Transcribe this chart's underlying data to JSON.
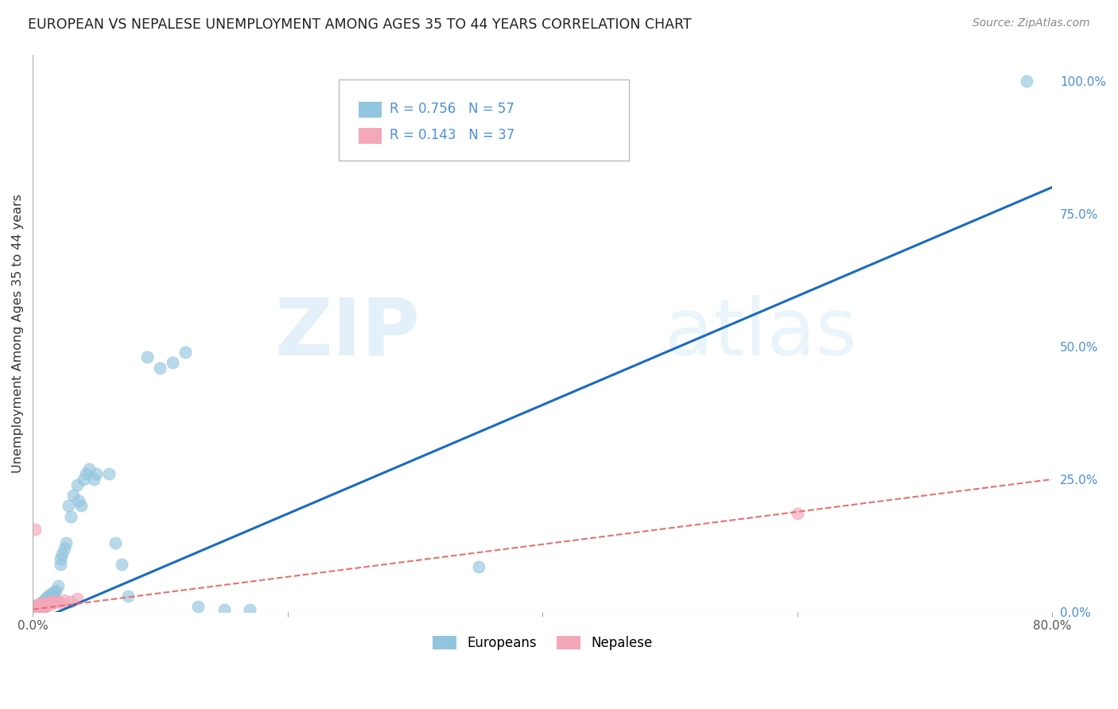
{
  "title": "EUROPEAN VS NEPALESE UNEMPLOYMENT AMONG AGES 35 TO 44 YEARS CORRELATION CHART",
  "source": "Source: ZipAtlas.com",
  "ylabel": "Unemployment Among Ages 35 to 44 years",
  "xlim": [
    0.0,
    0.8
  ],
  "ylim": [
    0.0,
    1.05
  ],
  "yticks": [
    0.0,
    0.25,
    0.5,
    0.75,
    1.0
  ],
  "yticklabels": [
    "0.0%",
    "25.0%",
    "50.0%",
    "75.0%",
    "100.0%"
  ],
  "europeans_R": 0.756,
  "europeans_N": 57,
  "nepalese_R": 0.143,
  "nepalese_N": 37,
  "european_color": "#92c5de",
  "nepalese_color": "#f4a7b9",
  "trendline_european_color": "#1a6bbf",
  "trendline_nepalese_color": "#e87070",
  "background_color": "#ffffff",
  "grid_color": "#cccccc",
  "label_color": "#4a90d9",
  "europeans_x": [
    0.003,
    0.003,
    0.003,
    0.004,
    0.004,
    0.005,
    0.005,
    0.006,
    0.006,
    0.007,
    0.007,
    0.008,
    0.008,
    0.009,
    0.009,
    0.01,
    0.01,
    0.011,
    0.012,
    0.012,
    0.013,
    0.014,
    0.015,
    0.015,
    0.016,
    0.017,
    0.018,
    0.02,
    0.022,
    0.022,
    0.023,
    0.025,
    0.026,
    0.028,
    0.03,
    0.032,
    0.035,
    0.036,
    0.038,
    0.04,
    0.042,
    0.044,
    0.048,
    0.05,
    0.06,
    0.065,
    0.07,
    0.075,
    0.09,
    0.1,
    0.11,
    0.12,
    0.13,
    0.15,
    0.17,
    0.35,
    0.78
  ],
  "europeans_y": [
    0.005,
    0.01,
    0.005,
    0.008,
    0.012,
    0.008,
    0.012,
    0.01,
    0.015,
    0.012,
    0.018,
    0.01,
    0.02,
    0.015,
    0.02,
    0.018,
    0.025,
    0.02,
    0.022,
    0.03,
    0.025,
    0.035,
    0.028,
    0.032,
    0.03,
    0.038,
    0.04,
    0.05,
    0.09,
    0.1,
    0.11,
    0.12,
    0.13,
    0.2,
    0.18,
    0.22,
    0.24,
    0.21,
    0.2,
    0.25,
    0.26,
    0.27,
    0.25,
    0.26,
    0.26,
    0.13,
    0.09,
    0.03,
    0.48,
    0.46,
    0.47,
    0.49,
    0.01,
    0.005,
    0.005,
    0.085,
    1.0
  ],
  "nepalese_x": [
    0.001,
    0.002,
    0.002,
    0.002,
    0.002,
    0.003,
    0.003,
    0.003,
    0.004,
    0.004,
    0.004,
    0.005,
    0.005,
    0.006,
    0.006,
    0.007,
    0.007,
    0.008,
    0.008,
    0.009,
    0.009,
    0.01,
    0.01,
    0.011,
    0.012,
    0.013,
    0.014,
    0.015,
    0.016,
    0.018,
    0.02,
    0.022,
    0.025,
    0.03,
    0.035,
    0.6,
    0.002
  ],
  "nepalese_y": [
    0.005,
    0.005,
    0.008,
    0.01,
    0.012,
    0.005,
    0.008,
    0.012,
    0.005,
    0.008,
    0.015,
    0.008,
    0.01,
    0.01,
    0.012,
    0.008,
    0.015,
    0.01,
    0.012,
    0.015,
    0.012,
    0.01,
    0.018,
    0.012,
    0.015,
    0.018,
    0.015,
    0.02,
    0.018,
    0.02,
    0.02,
    0.018,
    0.022,
    0.02,
    0.025,
    0.185,
    0.155
  ],
  "watermark_zip": "ZIP",
  "watermark_atlas": "atlas"
}
